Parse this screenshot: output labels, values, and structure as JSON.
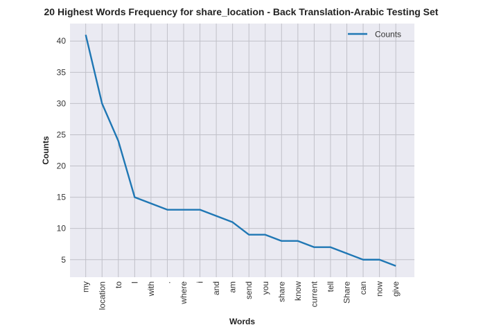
{
  "chart_data": {
    "type": "line",
    "title": "20 Highest Words Frequency for share_location - Back Translation-Arabic Testing Set",
    "xlabel": "Words",
    "ylabel": "Counts",
    "categories": [
      "my",
      "location",
      "to",
      "I",
      "with",
      ".",
      "where",
      "i",
      "and",
      "am",
      "send",
      "you",
      "share",
      "know",
      "current",
      "tell",
      "Share",
      "can",
      "now",
      "give"
    ],
    "series": [
      {
        "name": "Counts",
        "values": [
          41,
          30,
          24,
          15,
          14,
          13,
          13,
          13,
          12,
          11,
          9,
          9,
          8,
          8,
          7,
          7,
          6,
          5,
          5,
          4
        ]
      }
    ],
    "yticks": [
      5,
      10,
      15,
      20,
      25,
      30,
      35,
      40
    ],
    "ylim": [
      2.2,
      42.8
    ],
    "grid": true,
    "legend_position": "top-right",
    "colors": {
      "line": "#1f77b4",
      "plot_bg": "#eaeaf2",
      "grid": "#c0c0c8"
    }
  }
}
